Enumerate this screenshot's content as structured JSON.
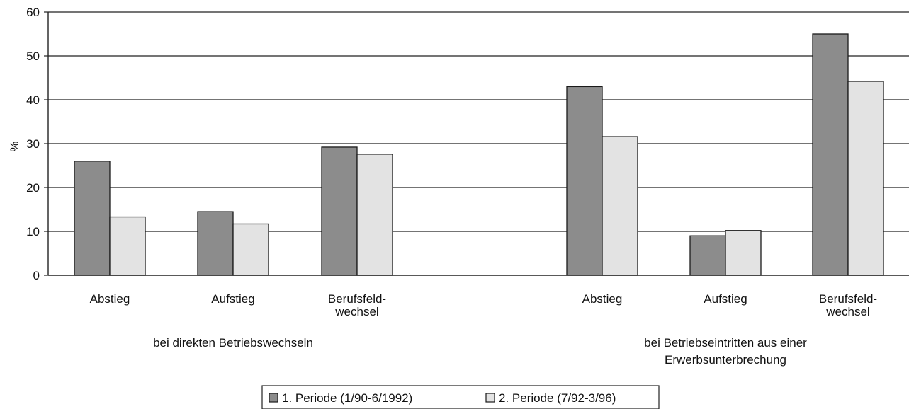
{
  "chart_data": {
    "type": "bar",
    "ylabel": "%",
    "ylim": [
      0,
      60
    ],
    "yticks": [
      "0",
      "10",
      "20",
      "30",
      "40",
      "50",
      "60"
    ],
    "grid": true,
    "legend_placement": "bottom-center",
    "categories": [
      {
        "label_lines": [
          "Abstieg"
        ],
        "group": 0
      },
      {
        "label_lines": [
          "Aufstieg"
        ],
        "group": 0
      },
      {
        "label_lines": [
          "Berufsfeld-",
          "wechsel"
        ],
        "group": 0
      },
      {
        "label_lines": [
          "Abstieg"
        ],
        "group": 1
      },
      {
        "label_lines": [
          "Aufstieg"
        ],
        "group": 1
      },
      {
        "label_lines": [
          "Berufsfeld-",
          "wechsel"
        ],
        "group": 1
      }
    ],
    "groups": [
      {
        "label_lines": [
          "bei direkten Betriebswechseln"
        ]
      },
      {
        "label_lines": [
          "bei Betriebseintritten aus einer",
          "Erwerbsunterbrechung"
        ]
      }
    ],
    "series": [
      {
        "name": "1. Periode (1/90-6/1992)",
        "color": "#8c8c8c",
        "values": [
          26,
          14.5,
          29.2,
          43,
          9,
          55
        ]
      },
      {
        "name": "2. Periode (7/92-3/96)",
        "color": "#e3e3e3",
        "values": [
          13.3,
          11.7,
          27.6,
          31.6,
          10.2,
          44.2
        ]
      }
    ]
  }
}
